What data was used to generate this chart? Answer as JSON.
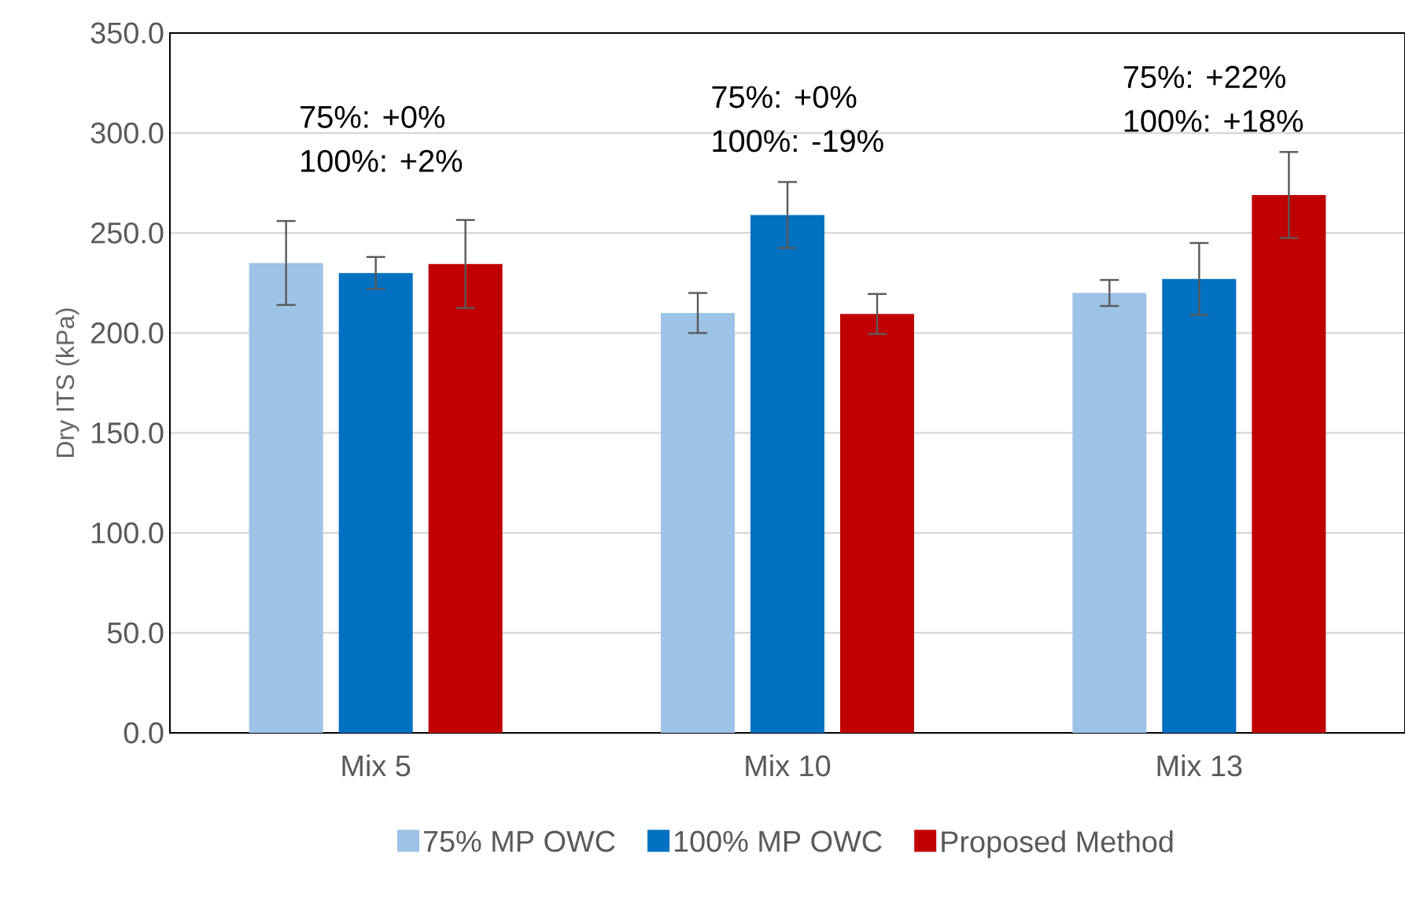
{
  "chart_data": {
    "type": "bar",
    "ylabel": "Dry ITS (kPa)",
    "categories": [
      "Mix 5",
      "Mix 10",
      "Mix 13"
    ],
    "series": [
      {
        "name": "75% MP OWC",
        "color": "#9dc3e6",
        "values": [
          235,
          210,
          220
        ],
        "errors": [
          21,
          10,
          6.5
        ]
      },
      {
        "name": "100% MP OWC",
        "color": "#0070c0",
        "values": [
          230,
          259,
          227
        ],
        "errors": [
          8,
          16.5,
          18
        ]
      },
      {
        "name": "Proposed Method",
        "color": "#c00000",
        "values": [
          234.5,
          209.5,
          269
        ],
        "errors": [
          22,
          10,
          21.5
        ]
      }
    ],
    "ylim": [
      0,
      350
    ],
    "yticks": [
      {
        "value": 0,
        "label": "0.0"
      },
      {
        "value": 50,
        "label": "50.0"
      },
      {
        "value": 100,
        "label": "100.0"
      },
      {
        "value": 150,
        "label": "150.0"
      },
      {
        "value": 200,
        "label": "200.0"
      },
      {
        "value": 250,
        "label": "250.0"
      },
      {
        "value": 300,
        "label": "300.0"
      },
      {
        "value": 350,
        "label": "350.0"
      }
    ],
    "annotations": [
      "75%: +0%",
      "100%:  +2%",
      "75%: +0%",
      "100%: -19%",
      "75%: +22%",
      "100%: +18%"
    ],
    "grid": "y",
    "legend": "bottom"
  }
}
